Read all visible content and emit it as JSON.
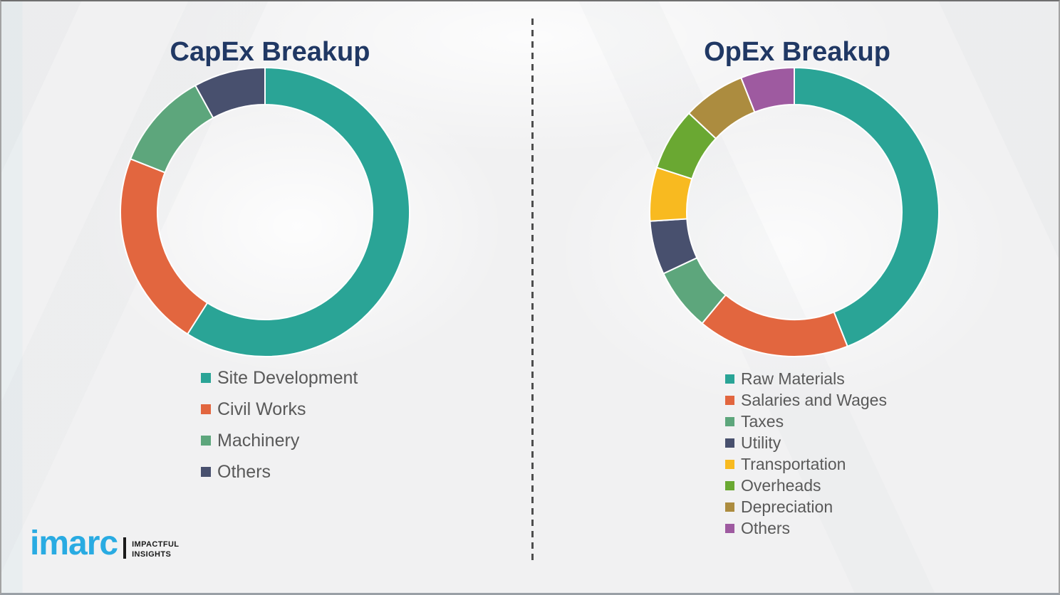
{
  "colors": {
    "title_navy": "#203864",
    "legend_text": "#595959",
    "divider_gray": "#4D4D4D",
    "background": "#F1F1F2",
    "logo_blue": "#29ABE2",
    "logo_black": "#1A1A1A",
    "segment_gap_white": "#FFFFFF"
  },
  "logo": {
    "brand": "imarc",
    "tagline_line1": "IMPACTFUL",
    "tagline_line2": "INSIGHTS"
  },
  "chart_data": [
    {
      "type": "pie",
      "variant": "donut",
      "title": "CapEx Breakup",
      "labels": [
        "Site Development",
        "Civil Works",
        "Machinery",
        "Others"
      ],
      "values": [
        59,
        22,
        11,
        8
      ],
      "colors": [
        "#2AA496",
        "#E2663F",
        "#5DA67C",
        "#48506E"
      ],
      "start_angle_deg": 0,
      "direction": "clockwise",
      "inner_radius_ratio": 0.745,
      "legend_position": "below-left",
      "data_labels_shown": false
    },
    {
      "type": "pie",
      "variant": "donut",
      "title": "OpEx Breakup",
      "labels": [
        "Raw Materials",
        "Salaries and Wages",
        "Taxes",
        "Utility",
        "Transportation",
        "Overheads",
        "Depreciation",
        "Others"
      ],
      "values": [
        44,
        17,
        7,
        6,
        6,
        7,
        7,
        6
      ],
      "colors": [
        "#2AA496",
        "#E2663F",
        "#5DA67C",
        "#48506E",
        "#F8BA20",
        "#6AA832",
        "#AC8C3F",
        "#9E5AA0"
      ],
      "start_angle_deg": 0,
      "direction": "clockwise",
      "inner_radius_ratio": 0.745,
      "legend_position": "below-left",
      "data_labels_shown": false
    }
  ]
}
